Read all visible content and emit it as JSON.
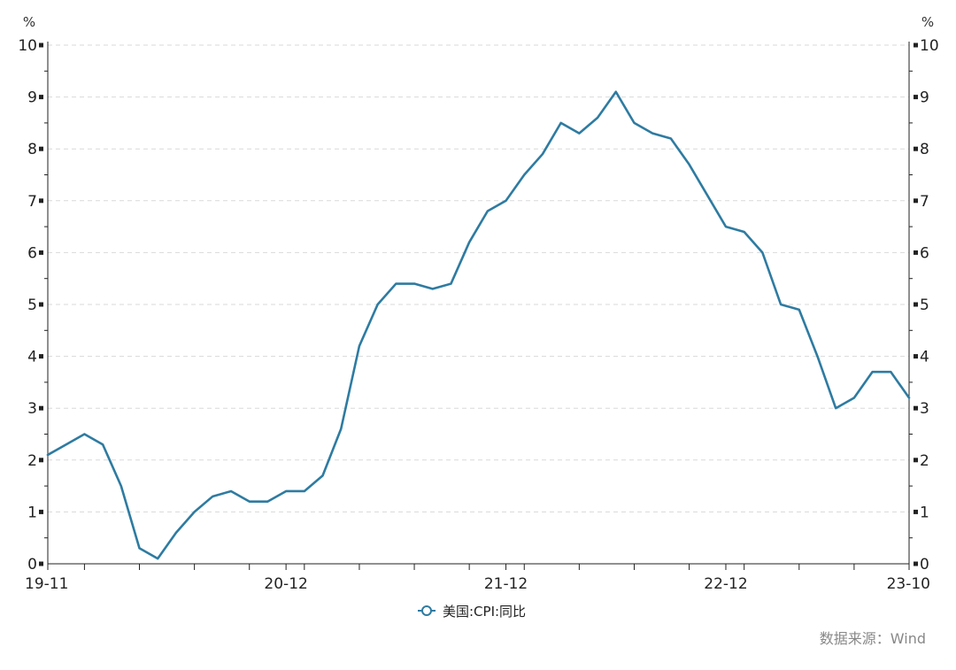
{
  "chart_data": {
    "type": "line",
    "title": "",
    "xlabel": "",
    "ylabel": "",
    "y_unit_left": "%",
    "y_unit_right": "%",
    "ylim": [
      0,
      10
    ],
    "yticks": [
      0,
      1,
      2,
      3,
      4,
      5,
      6,
      7,
      8,
      9,
      10
    ],
    "grid": true,
    "legend_position": "bottom-center",
    "xtick_labels": [
      "19-11",
      "20-12",
      "21-12",
      "22-12",
      "23-10"
    ],
    "series": [
      {
        "name": "美国:CPI:同比",
        "color": "#2e7ba1",
        "x": [
          "2019-11",
          "2019-12",
          "2020-01",
          "2020-02",
          "2020-03",
          "2020-04",
          "2020-05",
          "2020-06",
          "2020-07",
          "2020-08",
          "2020-09",
          "2020-10",
          "2020-11",
          "2020-12",
          "2021-01",
          "2021-02",
          "2021-03",
          "2021-04",
          "2021-05",
          "2021-06",
          "2021-07",
          "2021-08",
          "2021-09",
          "2021-10",
          "2021-11",
          "2021-12",
          "2022-01",
          "2022-02",
          "2022-03",
          "2022-04",
          "2022-05",
          "2022-06",
          "2022-07",
          "2022-08",
          "2022-09",
          "2022-10",
          "2022-11",
          "2022-12",
          "2023-01",
          "2023-02",
          "2023-03",
          "2023-04",
          "2023-05",
          "2023-06",
          "2023-07",
          "2023-08",
          "2023-09",
          "2023-10"
        ],
        "values": [
          2.1,
          2.3,
          2.5,
          2.3,
          1.5,
          0.3,
          0.1,
          0.6,
          1.0,
          1.3,
          1.4,
          1.2,
          1.2,
          1.4,
          1.4,
          1.7,
          2.6,
          4.2,
          5.0,
          5.4,
          5.4,
          5.3,
          5.4,
          6.2,
          6.8,
          7.0,
          7.5,
          7.9,
          8.5,
          8.3,
          8.6,
          9.1,
          8.5,
          8.3,
          8.2,
          7.7,
          7.1,
          6.5,
          6.4,
          6.0,
          5.0,
          4.9,
          4.0,
          3.0,
          3.2,
          3.7,
          3.7,
          3.2
        ]
      }
    ]
  },
  "source_note": "数据来源：Wind"
}
